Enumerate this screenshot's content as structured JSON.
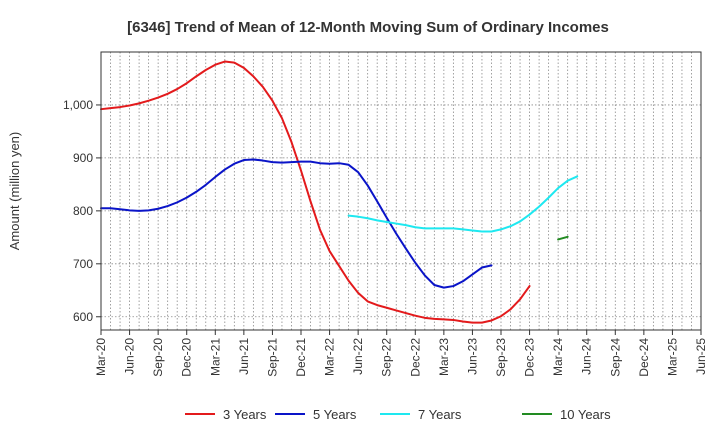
{
  "chart_data": {
    "type": "line",
    "title": "[6346]  Trend of Mean of 12-Month Moving Sum of Ordinary Incomes",
    "ylabel": "Amount (million yen)",
    "xlabel": "",
    "ylim": [
      575,
      1100
    ],
    "yticks": [
      600,
      700,
      800,
      900,
      1000
    ],
    "ytick_labels": [
      "600",
      "700",
      "800",
      "900",
      "1,000"
    ],
    "x_tick_labels": [
      "Mar-20",
      "Jun-20",
      "Sep-20",
      "Dec-20",
      "Mar-21",
      "Jun-21",
      "Sep-21",
      "Dec-21",
      "Mar-22",
      "Jun-22",
      "Sep-22",
      "Dec-22",
      "Mar-23",
      "Jun-23",
      "Sep-23",
      "Dec-23",
      "Mar-24",
      "Jun-24",
      "Sep-24",
      "Dec-24",
      "Mar-25",
      "Jun-25"
    ],
    "grid": true,
    "legend_position": "bottom",
    "series": [
      {
        "name": "3 Years",
        "color": "#e31a1c",
        "start_index": 0,
        "values": [
          992,
          994,
          996,
          999,
          1003,
          1008,
          1014,
          1021,
          1030,
          1041,
          1054,
          1066,
          1076,
          1082,
          1080,
          1070,
          1054,
          1034,
          1008,
          975,
          930,
          876,
          818,
          764,
          724,
          696,
          668,
          645,
          629,
          622,
          617,
          612,
          607,
          602,
          598,
          596,
          595,
          594,
          591,
          589,
          589,
          593,
          601,
          614,
          633,
          658
        ]
      },
      {
        "name": "5 Years",
        "color": "#0a14c8",
        "start_index": 0,
        "values": [
          805,
          805,
          803,
          801,
          800,
          801,
          804,
          809,
          816,
          825,
          836,
          849,
          864,
          878,
          889,
          896,
          897,
          895,
          892,
          891,
          892,
          893,
          893,
          890,
          889,
          890,
          887,
          873,
          848,
          818,
          787,
          757,
          729,
          702,
          678,
          660,
          655,
          658,
          667,
          680,
          693,
          697
        ]
      },
      {
        "name": "7 Years",
        "color": "#1ee8f0",
        "start_index": 26,
        "values": [
          791,
          789,
          786,
          782,
          779,
          776,
          773,
          769,
          767,
          767,
          767,
          767,
          765,
          763,
          761,
          761,
          765,
          771,
          780,
          793,
          808,
          825,
          843,
          857,
          865
        ]
      },
      {
        "name": "10 Years",
        "color": "#228b22",
        "start_index": 48,
        "values": [
          746,
          751
        ]
      }
    ]
  }
}
